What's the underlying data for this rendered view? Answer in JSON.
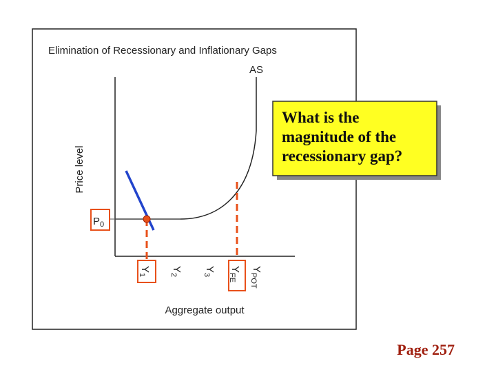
{
  "diagram": {
    "title": "Elimination of Recessionary and Inflationary Gaps",
    "curve_label": "AS",
    "y_axis_label": "Price level",
    "price_label": {
      "main": "P",
      "sub": "0"
    },
    "output_labels": [
      {
        "main": "Y",
        "sub": "1"
      },
      {
        "main": "Y",
        "sub": "2"
      },
      {
        "main": "Y",
        "sub": "3"
      },
      {
        "main": "Y",
        "sub": "FE"
      },
      {
        "main": "Y",
        "sub": "POT"
      }
    ],
    "x_axis_label": "Aggregate output"
  },
  "callout": {
    "lines": [
      "What is the",
      "magnitude of the",
      "recessionary gap?"
    ]
  },
  "footer": "Page 257"
}
